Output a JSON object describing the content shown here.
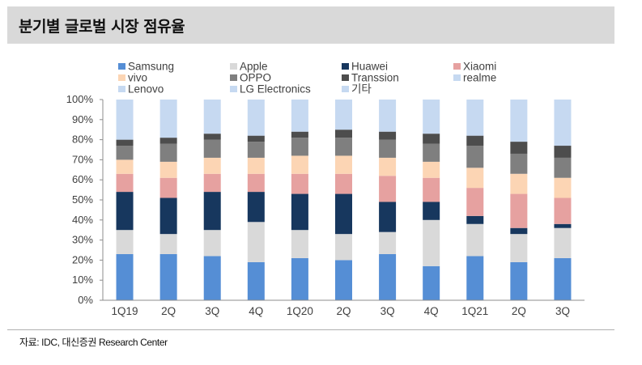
{
  "header": {
    "title": "분기별 글로벌 시장 점유율"
  },
  "footer": {
    "source": "자료: IDC, 대신증권 Research Center"
  },
  "colors": {
    "Samsung": "#558ed5",
    "Apple": "#d9d9d9",
    "Huawei": "#17375e",
    "Xiaomi": "#e6a1a0",
    "vivo": "#fcd5b4",
    "OPPO": "#7f7f7f",
    "Transsion": "#4d4d4d",
    "realme": "#c6d9f1",
    "Lenovo": "#c6d9f1",
    "LG Electronics": "#c6d9f1",
    "기타": "#c6d9f1"
  },
  "chart_data": {
    "type": "bar",
    "stacked": true,
    "title": "",
    "xlabel": "",
    "ylabel": "",
    "ylim": [
      0,
      100
    ],
    "y_ticks": [
      "0%",
      "10%",
      "20%",
      "30%",
      "40%",
      "50%",
      "60%",
      "70%",
      "80%",
      "90%",
      "100%"
    ],
    "y_tick_values": [
      0,
      10,
      20,
      30,
      40,
      50,
      60,
      70,
      80,
      90,
      100
    ],
    "legend_position": "top",
    "categories": [
      "1Q19",
      "2Q",
      "3Q",
      "4Q",
      "1Q20",
      "2Q",
      "3Q",
      "4Q",
      "1Q21",
      "2Q",
      "3Q"
    ],
    "series": [
      {
        "name": "Samsung",
        "values": [
          23,
          23,
          22,
          19,
          21,
          20,
          23,
          17,
          22,
          19,
          21
        ]
      },
      {
        "name": "Apple",
        "values": [
          12,
          10,
          13,
          20,
          14,
          13,
          11,
          23,
          16,
          14,
          15
        ]
      },
      {
        "name": "Huawei",
        "values": [
          19,
          18,
          19,
          15,
          18,
          20,
          15,
          9,
          4,
          3,
          2
        ]
      },
      {
        "name": "Xiaomi",
        "values": [
          9,
          10,
          9,
          9,
          10,
          10,
          13,
          12,
          14,
          17,
          13
        ]
      },
      {
        "name": "vivo",
        "values": [
          7,
          8,
          8,
          8,
          9,
          9,
          9,
          8,
          10,
          10,
          10
        ]
      },
      {
        "name": "OPPO",
        "values": [
          7,
          9,
          9,
          8,
          9,
          9,
          9,
          9,
          11,
          10,
          10
        ]
      },
      {
        "name": "Transsion",
        "values": [
          3,
          3,
          3,
          3,
          3,
          4,
          4,
          5,
          5,
          6,
          6
        ]
      },
      {
        "name": "realme",
        "values": [
          0,
          0,
          0,
          0,
          0,
          0,
          0,
          0,
          0,
          0,
          0
        ]
      },
      {
        "name": "Lenovo",
        "values": [
          0,
          0,
          0,
          0,
          0,
          0,
          0,
          0,
          0,
          0,
          0
        ]
      },
      {
        "name": "LG Electronics",
        "values": [
          0,
          0,
          0,
          0,
          0,
          0,
          0,
          0,
          0,
          0,
          0
        ]
      },
      {
        "name": "기타",
        "values": [
          20,
          19,
          17,
          18,
          16,
          15,
          16,
          17,
          18,
          21,
          23
        ]
      }
    ]
  }
}
